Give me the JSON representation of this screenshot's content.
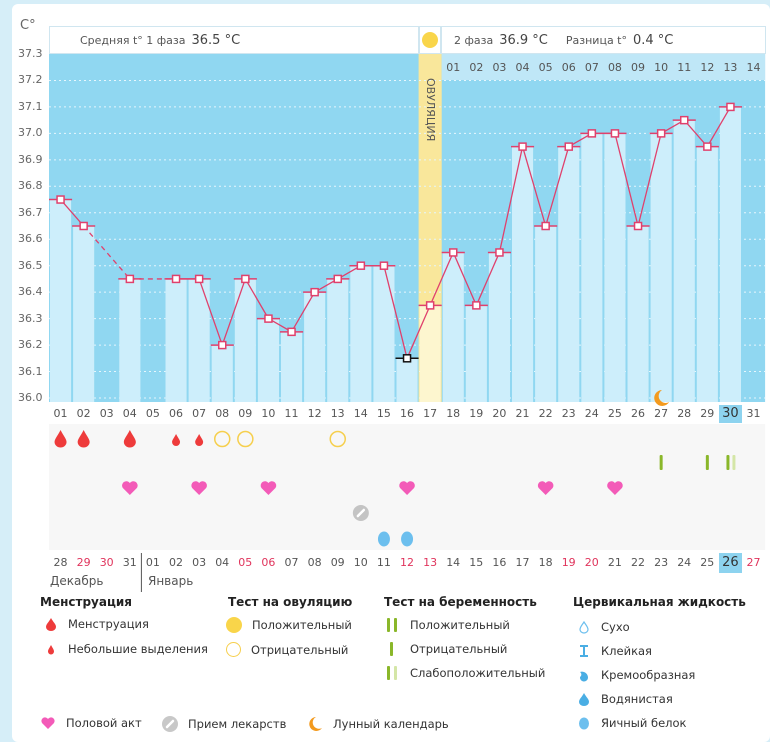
{
  "y_unit": "C°",
  "header": {
    "phase1_label": "Средняя t° 1 фаза",
    "phase1_value": "36.5 °C",
    "phase2_label": "2 фаза",
    "phase2_value": "36.9 °C",
    "diff_label": "Разница t°",
    "diff_value": "0.4 °C",
    "ovulation_label": "ОВУЛЯЦИЯ"
  },
  "chart_data": {
    "type": "line",
    "title": "",
    "ylabel": "C°",
    "ylim": [
      36.0,
      37.3
    ],
    "yticks": [
      "37.3",
      "37.2",
      "37.1",
      "37.0",
      "36.9",
      "36.8",
      "36.7",
      "36.6",
      "36.5",
      "36.4",
      "36.3",
      "36.2",
      "36.1",
      "36.0"
    ],
    "cycle_days": [
      "01",
      "02",
      "03",
      "04",
      "05",
      "06",
      "07",
      "08",
      "09",
      "10",
      "11",
      "12",
      "13",
      "14",
      "15",
      "16",
      "17",
      "18",
      "19",
      "20",
      "21",
      "22",
      "23",
      "24",
      "25",
      "26",
      "27",
      "28",
      "29",
      "30",
      "31"
    ],
    "post_ovulation_days": [
      "01",
      "02",
      "03",
      "04",
      "05",
      "06",
      "07",
      "08",
      "09",
      "10",
      "11",
      "12",
      "13",
      "14"
    ],
    "temperatures": [
      36.75,
      36.65,
      null,
      36.45,
      null,
      36.45,
      36.45,
      36.2,
      36.45,
      36.3,
      36.25,
      36.4,
      36.45,
      36.5,
      36.5,
      36.15,
      36.35,
      36.55,
      36.35,
      36.55,
      36.95,
      36.65,
      36.95,
      37.0,
      37.0,
      36.65,
      37.0,
      37.05,
      36.95,
      37.1,
      null
    ],
    "ovulation_day": 17,
    "current_day": 30,
    "grid": true
  },
  "calendar_dates": [
    "28",
    "29",
    "30",
    "31",
    "01",
    "02",
    "03",
    "04",
    "05",
    "06",
    "07",
    "08",
    "09",
    "10",
    "11",
    "12",
    "13",
    "14",
    "15",
    "16",
    "17",
    "18",
    "19",
    "20",
    "21",
    "22",
    "23",
    "24",
    "25",
    "26",
    "27"
  ],
  "weekend_dates_idx": [
    1,
    2,
    8,
    9,
    15,
    16,
    22,
    23,
    30
  ],
  "current_date_idx": 29,
  "months": {
    "prev": "Декабрь",
    "next": "Январь"
  },
  "markers": {
    "menstruation": [
      1,
      2,
      4
    ],
    "spotting": [
      6,
      7
    ],
    "ovulation_negative": [
      8,
      9,
      13
    ],
    "pregnancy_negative": [
      27,
      29
    ],
    "pregnancy_weak": [
      30
    ],
    "intercourse": [
      4,
      7,
      10,
      16,
      22,
      25
    ],
    "medication": [
      14
    ],
    "egg_white": [
      15,
      16
    ],
    "moon": [
      27
    ]
  },
  "legend": {
    "menstruation_title": "Менструация",
    "menstruation": "Менструация",
    "spotting": "Небольшие выделения",
    "ovtest_title": "Тест на овуляцию",
    "ov_positive": "Положительный",
    "ov_negative": "Отрицательный",
    "pregtest_title": "Тест на беременность",
    "preg_positive": "Положительный",
    "preg_negative": "Отрицательный",
    "preg_weak": "Слабоположительный",
    "cervical_title": "Цервикальная жидкость",
    "dry": "Сухо",
    "sticky": "Клейкая",
    "creamy": "Кремообразная",
    "watery": "Водянистая",
    "eggwhite": "Яичный белок",
    "intercourse": "Половой акт",
    "medication": "Прием лекарств",
    "moon": "Лунный календарь"
  },
  "colors": {
    "sky": "#90d7f1",
    "bar": "#cdeefb",
    "line": "#e0406c",
    "ovulation": "#f9e79b",
    "ovulation_dot": "#f9d54a",
    "menstruation": "#ee3b3b",
    "heart": "#f35bb8",
    "pregnancy": "#8ab72a",
    "cervical": "#6cbfee",
    "moon": "#f39a1e"
  }
}
